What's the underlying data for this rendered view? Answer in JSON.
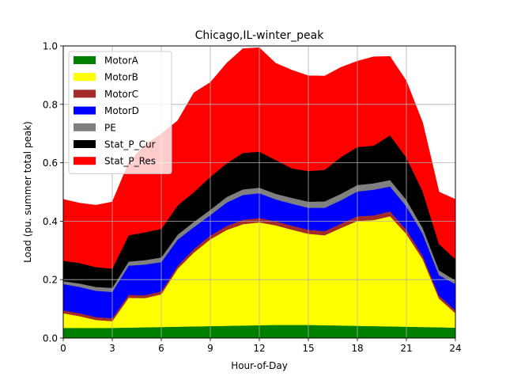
{
  "chart_data": {
    "type": "area",
    "stacked": true,
    "title": "Chicago,IL-winter_peak",
    "xlabel": "Hour-of-Day",
    "ylabel": "Load (pu. summer total peak)",
    "xlim": [
      0,
      24
    ],
    "ylim": [
      0,
      1.0
    ],
    "xticks": [
      "0",
      "3",
      "6",
      "9",
      "12",
      "15",
      "18",
      "21",
      "24"
    ],
    "yticks": [
      "0.0",
      "0.2",
      "0.4",
      "0.6",
      "0.8",
      "1.0"
    ],
    "grid": true,
    "legend_position": "upper-left",
    "x": [
      0,
      1,
      2,
      3,
      4,
      5,
      6,
      7,
      8,
      9,
      10,
      11,
      12,
      13,
      14,
      15,
      16,
      17,
      18,
      19,
      20,
      21,
      22,
      23,
      24
    ],
    "series": [
      {
        "name": "MotorA",
        "color": "#008000",
        "values": [
          0.035,
          0.035,
          0.035,
          0.035,
          0.036,
          0.037,
          0.038,
          0.039,
          0.04,
          0.041,
          0.042,
          0.043,
          0.044,
          0.045,
          0.045,
          0.045,
          0.044,
          0.043,
          0.042,
          0.041,
          0.04,
          0.039,
          0.038,
          0.037,
          0.036
        ]
      },
      {
        "name": "MotorB",
        "color": "#ffff00",
        "values": [
          0.05,
          0.04,
          0.027,
          0.023,
          0.102,
          0.1,
          0.112,
          0.198,
          0.253,
          0.297,
          0.328,
          0.347,
          0.352,
          0.341,
          0.326,
          0.312,
          0.308,
          0.334,
          0.359,
          0.363,
          0.377,
          0.317,
          0.232,
          0.098,
          0.049
        ]
      },
      {
        "name": "MotorC",
        "color": "#a52a2a",
        "values": [
          0.01,
          0.01,
          0.01,
          0.01,
          0.01,
          0.01,
          0.01,
          0.01,
          0.012,
          0.013,
          0.014,
          0.015,
          0.015,
          0.014,
          0.014,
          0.014,
          0.014,
          0.015,
          0.016,
          0.016,
          0.017,
          0.015,
          0.012,
          0.01,
          0.01
        ]
      },
      {
        "name": "MotorD",
        "color": "#0000ff",
        "values": [
          0.09,
          0.09,
          0.09,
          0.09,
          0.1,
          0.105,
          0.1,
          0.09,
          0.075,
          0.07,
          0.08,
          0.085,
          0.085,
          0.075,
          0.075,
          0.075,
          0.08,
          0.08,
          0.085,
          0.088,
          0.085,
          0.08,
          0.075,
          0.07,
          0.09
        ]
      },
      {
        "name": "PE",
        "color": "#808080",
        "values": [
          0.01,
          0.012,
          0.013,
          0.014,
          0.014,
          0.015,
          0.016,
          0.017,
          0.018,
          0.018,
          0.019,
          0.019,
          0.019,
          0.019,
          0.02,
          0.021,
          0.022,
          0.022,
          0.022,
          0.022,
          0.022,
          0.022,
          0.02,
          0.017,
          0.012
        ]
      },
      {
        "name": "Stat_P_Cur",
        "color": "#000000",
        "values": [
          0.07,
          0.07,
          0.068,
          0.066,
          0.09,
          0.095,
          0.098,
          0.1,
          0.102,
          0.113,
          0.115,
          0.125,
          0.123,
          0.116,
          0.101,
          0.105,
          0.108,
          0.126,
          0.13,
          0.129,
          0.153,
          0.145,
          0.125,
          0.09,
          0.073
        ]
      },
      {
        "name": "Stat_P_Res",
        "color": "#ff0000",
        "values": [
          0.21,
          0.205,
          0.212,
          0.228,
          0.248,
          0.3,
          0.325,
          0.29,
          0.34,
          0.323,
          0.343,
          0.357,
          0.356,
          0.331,
          0.336,
          0.326,
          0.321,
          0.307,
          0.294,
          0.304,
          0.27,
          0.262,
          0.235,
          0.178,
          0.205
        ]
      }
    ]
  }
}
